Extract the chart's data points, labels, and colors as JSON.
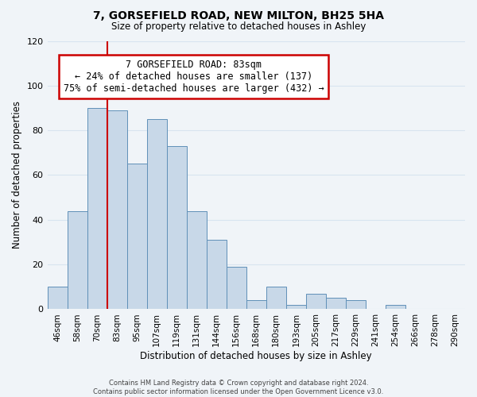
{
  "title": "7, GORSEFIELD ROAD, NEW MILTON, BH25 5HA",
  "subtitle": "Size of property relative to detached houses in Ashley",
  "xlabel": "Distribution of detached houses by size in Ashley",
  "ylabel": "Number of detached properties",
  "footer_line1": "Contains HM Land Registry data © Crown copyright and database right 2024.",
  "footer_line2": "Contains public sector information licensed under the Open Government Licence v3.0.",
  "bar_labels": [
    "46sqm",
    "58sqm",
    "70sqm",
    "83sqm",
    "95sqm",
    "107sqm",
    "119sqm",
    "131sqm",
    "144sqm",
    "156sqm",
    "168sqm",
    "180sqm",
    "193sqm",
    "205sqm",
    "217sqm",
    "229sqm",
    "241sqm",
    "254sqm",
    "266sqm",
    "278sqm",
    "290sqm"
  ],
  "bar_values": [
    10,
    44,
    90,
    89,
    65,
    85,
    73,
    44,
    31,
    19,
    4,
    10,
    2,
    7,
    5,
    4,
    0,
    2,
    0,
    0,
    0
  ],
  "bar_color": "#c8d8e8",
  "bar_edge_color": "#6090b8",
  "highlight_index": 3,
  "highlight_line_color": "#cc0000",
  "ylim": [
    0,
    120
  ],
  "yticks": [
    0,
    20,
    40,
    60,
    80,
    100,
    120
  ],
  "annotation_title": "7 GORSEFIELD ROAD: 83sqm",
  "annotation_line1": "← 24% of detached houses are smaller (137)",
  "annotation_line2": "75% of semi-detached houses are larger (432) →",
  "annotation_box_color": "#ffffff",
  "annotation_box_edge": "#cc0000",
  "background_color": "#f0f4f8",
  "grid_color": "#d8e4f0"
}
